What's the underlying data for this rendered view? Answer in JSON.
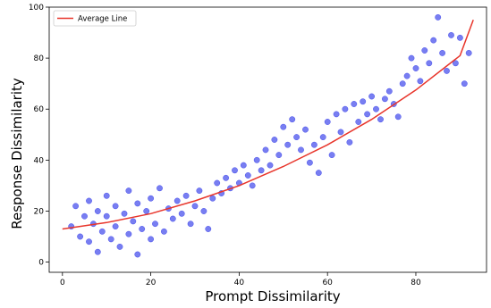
{
  "chart_data": {
    "type": "scatter",
    "xlabel": "Prompt Dissimilarity",
    "ylabel": "Response Dissimilarity",
    "xlim": [
      -3,
      96
    ],
    "ylim": [
      -4,
      100
    ],
    "x_ticks": [
      0,
      20,
      40,
      60,
      80
    ],
    "y_ticks": [
      0,
      20,
      40,
      60,
      80,
      100
    ],
    "grid": false,
    "legend_position": "top-left",
    "point_color": "#0a14e6",
    "line_color": "#e8352b",
    "series": [
      {
        "name": "",
        "kind": "scatter",
        "points": [
          [
            2,
            14
          ],
          [
            3,
            22
          ],
          [
            4,
            10
          ],
          [
            5,
            18
          ],
          [
            6,
            24
          ],
          [
            6,
            8
          ],
          [
            7,
            15
          ],
          [
            8,
            20
          ],
          [
            8,
            4
          ],
          [
            9,
            12
          ],
          [
            10,
            26
          ],
          [
            10,
            18
          ],
          [
            11,
            9
          ],
          [
            12,
            22
          ],
          [
            12,
            14
          ],
          [
            13,
            6
          ],
          [
            14,
            19
          ],
          [
            15,
            28
          ],
          [
            15,
            11
          ],
          [
            16,
            16
          ],
          [
            17,
            23
          ],
          [
            17,
            3
          ],
          [
            18,
            13
          ],
          [
            19,
            20
          ],
          [
            20,
            9
          ],
          [
            20,
            25
          ],
          [
            21,
            15
          ],
          [
            22,
            29
          ],
          [
            23,
            12
          ],
          [
            24,
            21
          ],
          [
            25,
            17
          ],
          [
            26,
            24
          ],
          [
            27,
            19
          ],
          [
            28,
            26
          ],
          [
            29,
            15
          ],
          [
            30,
            22
          ],
          [
            31,
            28
          ],
          [
            32,
            20
          ],
          [
            33,
            13
          ],
          [
            34,
            25
          ],
          [
            35,
            31
          ],
          [
            36,
            27
          ],
          [
            37,
            33
          ],
          [
            38,
            29
          ],
          [
            39,
            36
          ],
          [
            40,
            31
          ],
          [
            41,
            38
          ],
          [
            42,
            34
          ],
          [
            43,
            30
          ],
          [
            44,
            40
          ],
          [
            45,
            36
          ],
          [
            46,
            44
          ],
          [
            47,
            38
          ],
          [
            48,
            48
          ],
          [
            49,
            42
          ],
          [
            50,
            53
          ],
          [
            51,
            46
          ],
          [
            52,
            56
          ],
          [
            53,
            49
          ],
          [
            54,
            44
          ],
          [
            55,
            52
          ],
          [
            56,
            39
          ],
          [
            57,
            46
          ],
          [
            58,
            35
          ],
          [
            59,
            49
          ],
          [
            60,
            55
          ],
          [
            61,
            42
          ],
          [
            62,
            58
          ],
          [
            63,
            51
          ],
          [
            64,
            60
          ],
          [
            65,
            47
          ],
          [
            66,
            62
          ],
          [
            67,
            55
          ],
          [
            68,
            63
          ],
          [
            69,
            58
          ],
          [
            70,
            65
          ],
          [
            71,
            60
          ],
          [
            72,
            56
          ],
          [
            73,
            64
          ],
          [
            74,
            67
          ],
          [
            75,
            62
          ],
          [
            76,
            57
          ],
          [
            77,
            70
          ],
          [
            78,
            73
          ],
          [
            79,
            80
          ],
          [
            80,
            76
          ],
          [
            81,
            71
          ],
          [
            82,
            83
          ],
          [
            83,
            78
          ],
          [
            84,
            87
          ],
          [
            85,
            96
          ],
          [
            86,
            82
          ],
          [
            87,
            75
          ],
          [
            88,
            89
          ],
          [
            89,
            78
          ],
          [
            90,
            88
          ],
          [
            91,
            70
          ],
          [
            92,
            82
          ]
        ]
      },
      {
        "name": "Average Line",
        "kind": "line",
        "x": [
          0,
          10,
          20,
          30,
          40,
          50,
          60,
          70,
          80,
          90,
          93
        ],
        "y": [
          13,
          15.5,
          19,
          24,
          30,
          37.5,
          46,
          56,
          67.5,
          81,
          95
        ]
      }
    ]
  }
}
